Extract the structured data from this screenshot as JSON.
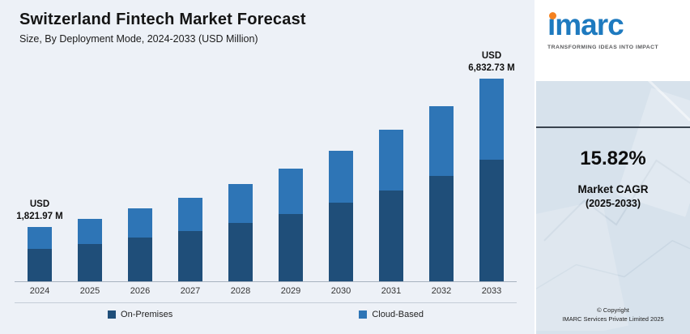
{
  "header": {
    "title": "Switzerland Fintech Market Forecast",
    "subtitle": "Size, By Deployment Mode, 2024-2033 (USD Million)"
  },
  "chart_data": {
    "type": "bar",
    "stacked": true,
    "title": "Switzerland Fintech Market Forecast",
    "subtitle": "Size, By Deployment Mode, 2024-2033 (USD Million)",
    "categories": [
      "2024",
      "2025",
      "2026",
      "2027",
      "2028",
      "2029",
      "2030",
      "2031",
      "2032",
      "2033"
    ],
    "series": [
      {
        "name": "On-Premises",
        "color": "#1f4e79",
        "values": [
          1090,
          1265,
          1465,
          1700,
          1965,
          2280,
          2640,
          3055,
          3540,
          4099.73
        ]
      },
      {
        "name": "Cloud-Based",
        "color": "#2e75b6",
        "values": [
          731.97,
          845,
          979,
          1130,
          1313,
          1517,
          1757,
          2038,
          2359,
          2733
        ]
      }
    ],
    "totals_labeled": {
      "2024": "1,821.97",
      "2033": "6,832.73"
    },
    "annotations": [
      {
        "category": "2024",
        "lines": [
          "USD",
          "1,821.97 M"
        ]
      },
      {
        "category": "2033",
        "lines": [
          "USD",
          "6,832.73 M"
        ]
      }
    ],
    "xlabel": "",
    "ylabel": "USD Million",
    "ylim": [
      0,
      7000
    ],
    "grid": false,
    "legend_position": "bottom"
  },
  "sidebar": {
    "logo_text": "imarc",
    "logo_tagline": "TRANSFORMING IDEAS INTO IMPACT",
    "cagr_value": "15.82%",
    "cagr_label": "Market CAGR",
    "cagr_period": "(2025-2033)",
    "copyright_line1": "© Copyright",
    "copyright_line2": "IMARC Services Private Limited 2025"
  },
  "colors": {
    "on_premises": "#1f4e79",
    "cloud_based": "#2e75b6",
    "main_background": "#edf1f7",
    "sidebar_background": "#d7e2ec",
    "brand_blue": "#1e7abf",
    "brand_orange": "#f58220"
  }
}
